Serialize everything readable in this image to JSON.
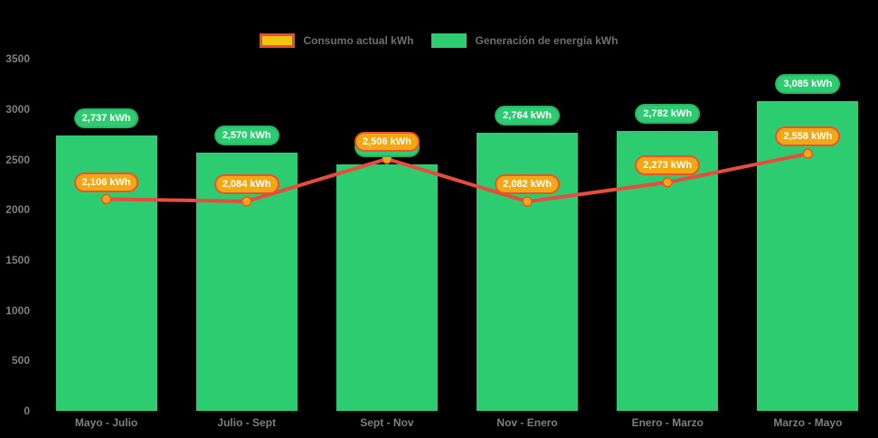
{
  "page": {
    "background": "#000000"
  },
  "legend": {
    "items": [
      {
        "label": "Consumo actual kWh",
        "swatch_fill": "#f1c40f",
        "swatch_border": "#e74c3c"
      },
      {
        "label": "Generación de energía kWh",
        "swatch_fill": "#2ecc71"
      }
    ]
  },
  "chart_data": {
    "type": "bar",
    "combo": "bar+line",
    "title": "",
    "xlabel": "",
    "ylabel": "",
    "categories": [
      "Mayo - Julio",
      "Julio - Sept",
      "Sept - Nov",
      "Nov - Enero",
      "Enero - Marzo",
      "Marzo - Mayo"
    ],
    "series": [
      {
        "name": "Generación de energía kWh",
        "type": "bar",
        "color": "#2ecc71",
        "badge_fill": "#2ecc71",
        "badge_border": "#28b463",
        "values": [
          2737,
          2570,
          2450,
          2764,
          2782,
          3085
        ],
        "labels": [
          "2,737 kWh",
          "2,570 kWh",
          "2,450 kWh",
          "2,764 kWh",
          "2,782 kWh",
          "3,085 kWh"
        ]
      },
      {
        "name": "Consumo actual kWh",
        "type": "line",
        "color": "#e74c3c",
        "marker_fill": "#f3a712",
        "marker_border": "#e8542f",
        "badge_fill": "#f3a712",
        "badge_border": "#e8542f",
        "values": [
          2106,
          2084,
          2506,
          2082,
          2273,
          2558
        ],
        "labels": [
          "2,106 kWh",
          "2,084 kWh",
          "2,506 kWh",
          "2,082 kWh",
          "2,273 kWh",
          "2,558 kWh"
        ]
      }
    ],
    "ylim": [
      0,
      3500
    ],
    "yticks": [
      0,
      500,
      1000,
      1500,
      2000,
      2500,
      3000,
      3500
    ],
    "grid": false,
    "legend_position": "top-center",
    "axis_text_color": "#7f7f7f"
  }
}
